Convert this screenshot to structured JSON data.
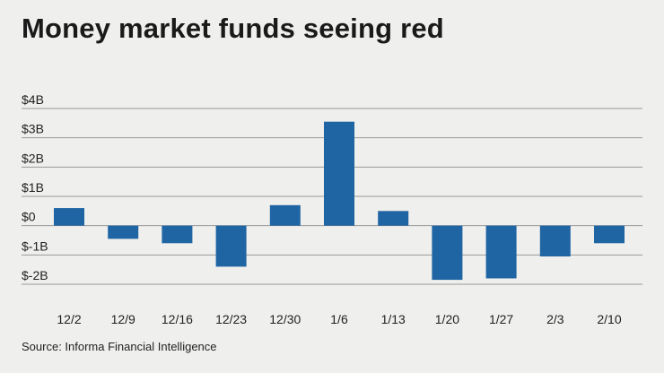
{
  "title": "Money market funds seeing red",
  "source": "Source: Informa Financial Intelligence",
  "colors": {
    "bar": "#1f65a3",
    "grid": "#9a9a9a",
    "background": "#efefed"
  },
  "chart_data": {
    "type": "bar",
    "title": "Money market funds seeing red",
    "xlabel": "",
    "ylabel": "",
    "categories": [
      "12/2",
      "12/9",
      "12/16",
      "12/23",
      "12/30",
      "1/6",
      "1/13",
      "1/20",
      "1/27",
      "2/3",
      "2/10"
    ],
    "values": [
      0.6,
      -0.45,
      -0.6,
      -1.4,
      0.7,
      3.55,
      0.5,
      -1.85,
      -1.8,
      -1.05,
      -0.6
    ],
    "ylim": [
      -2,
      4
    ],
    "yticks": [
      4,
      3,
      2,
      1,
      0,
      -1,
      -2
    ],
    "ytick_labels": [
      "$4B",
      "$3B",
      "$2B",
      "$1B",
      "$0",
      "$-1B",
      "$-2B"
    ],
    "grid": true
  }
}
